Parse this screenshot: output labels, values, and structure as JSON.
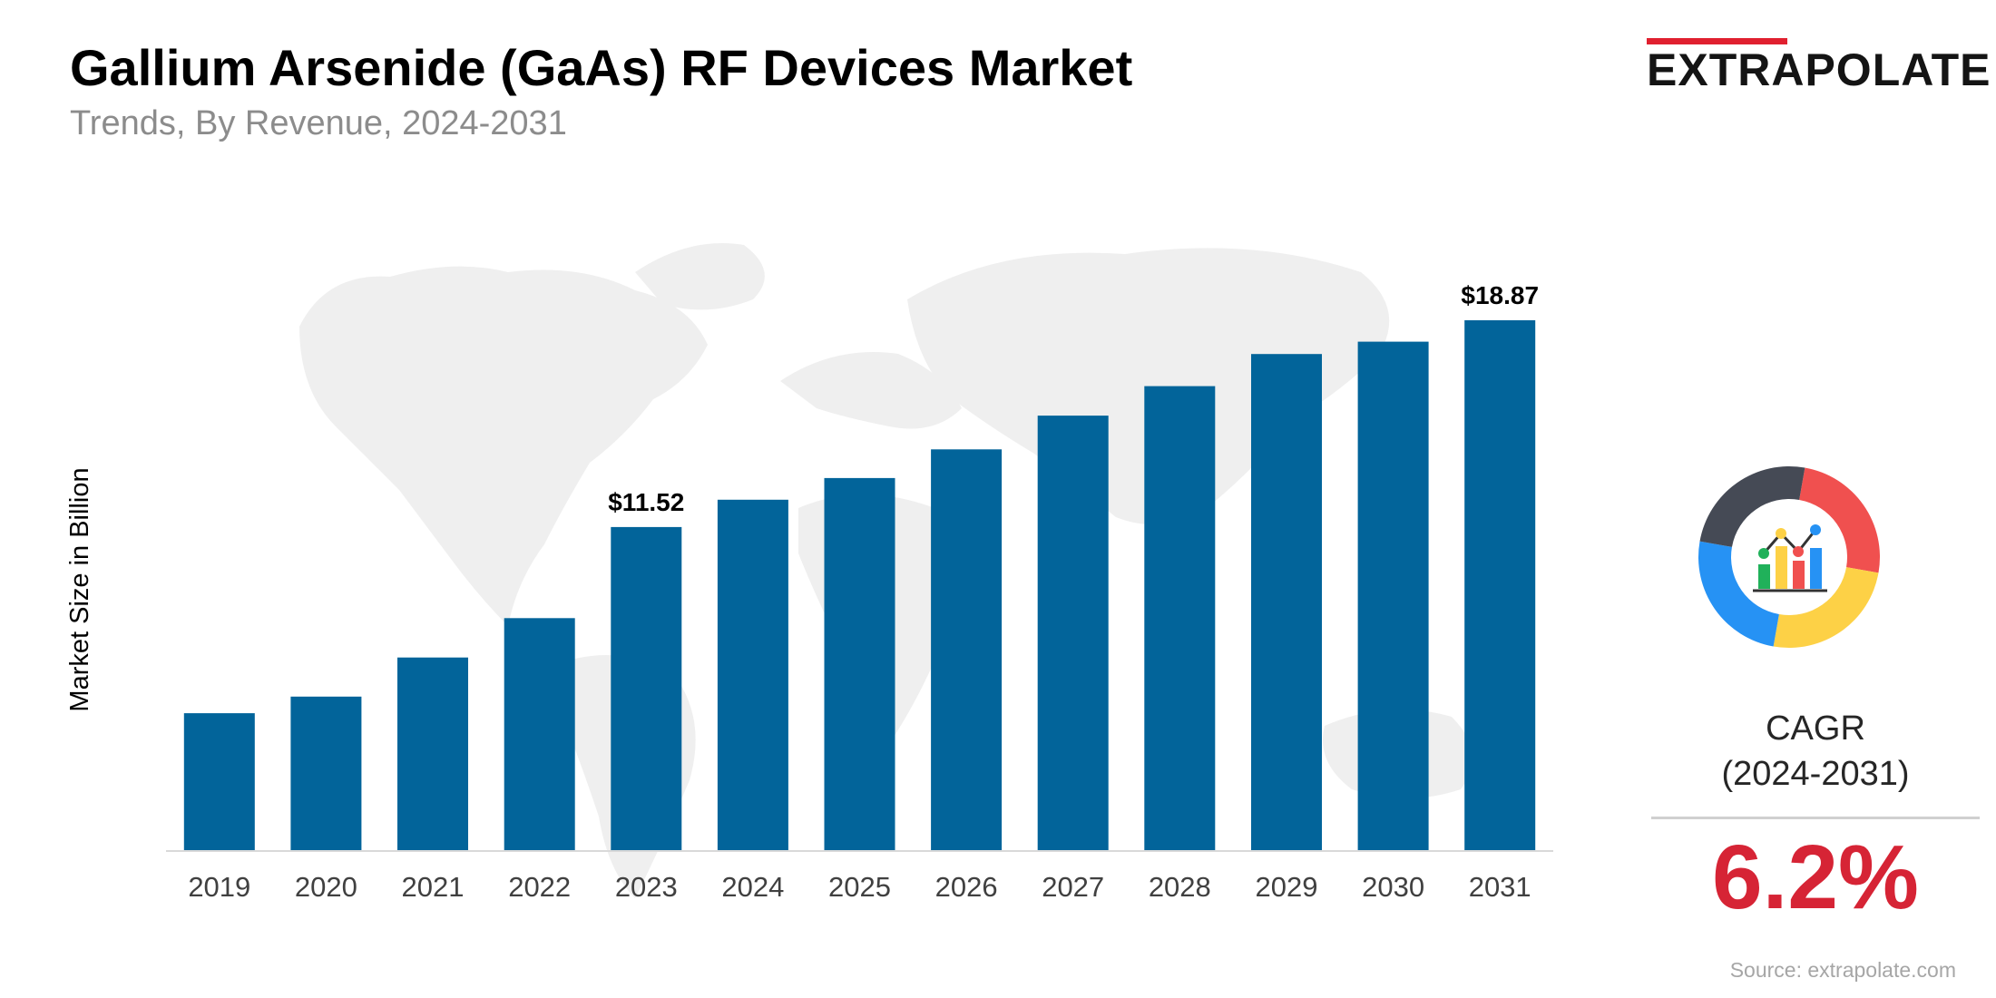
{
  "header": {
    "title": "Gallium Arsenide (GaAs) RF Devices Market",
    "subtitle": "Trends, By Revenue, 2024-2031"
  },
  "brand": {
    "name": "EXTRAPOLATE",
    "accent_color": "#e0202f"
  },
  "chart_data": {
    "type": "bar",
    "title": "Gallium Arsenide (GaAs) RF Devices Market",
    "subtitle": "Trends, By Revenue, 2024-2031",
    "xlabel": "",
    "ylabel": "Market Size in Billion",
    "categories": [
      "2019",
      "2020",
      "2021",
      "2022",
      "2023",
      "2024",
      "2025",
      "2026",
      "2027",
      "2028",
      "2029",
      "2030",
      "2031"
    ],
    "values": [
      4.9,
      5.49,
      6.88,
      8.28,
      11.52,
      12.49,
      13.26,
      14.28,
      15.48,
      16.53,
      17.67,
      18.11,
      18.87
    ],
    "value_labels": [
      {
        "category": "2023",
        "text": "$11.52"
      },
      {
        "category": "2031",
        "text": "$18.87"
      }
    ],
    "ylim": [
      0,
      20
    ],
    "bar_color": "#02649a",
    "grid": false,
    "legend": "none"
  },
  "cagr": {
    "label_line1": "CAGR",
    "label_line2": "(2024-2031)",
    "value": "6.2%",
    "value_color": "#d62435",
    "icon": "growth-chart-donut-icon",
    "ring_colors": [
      "#f0504f",
      "#fdd146",
      "#2692f4",
      "#454a55"
    ]
  },
  "source": "Source: extrapolate.com"
}
